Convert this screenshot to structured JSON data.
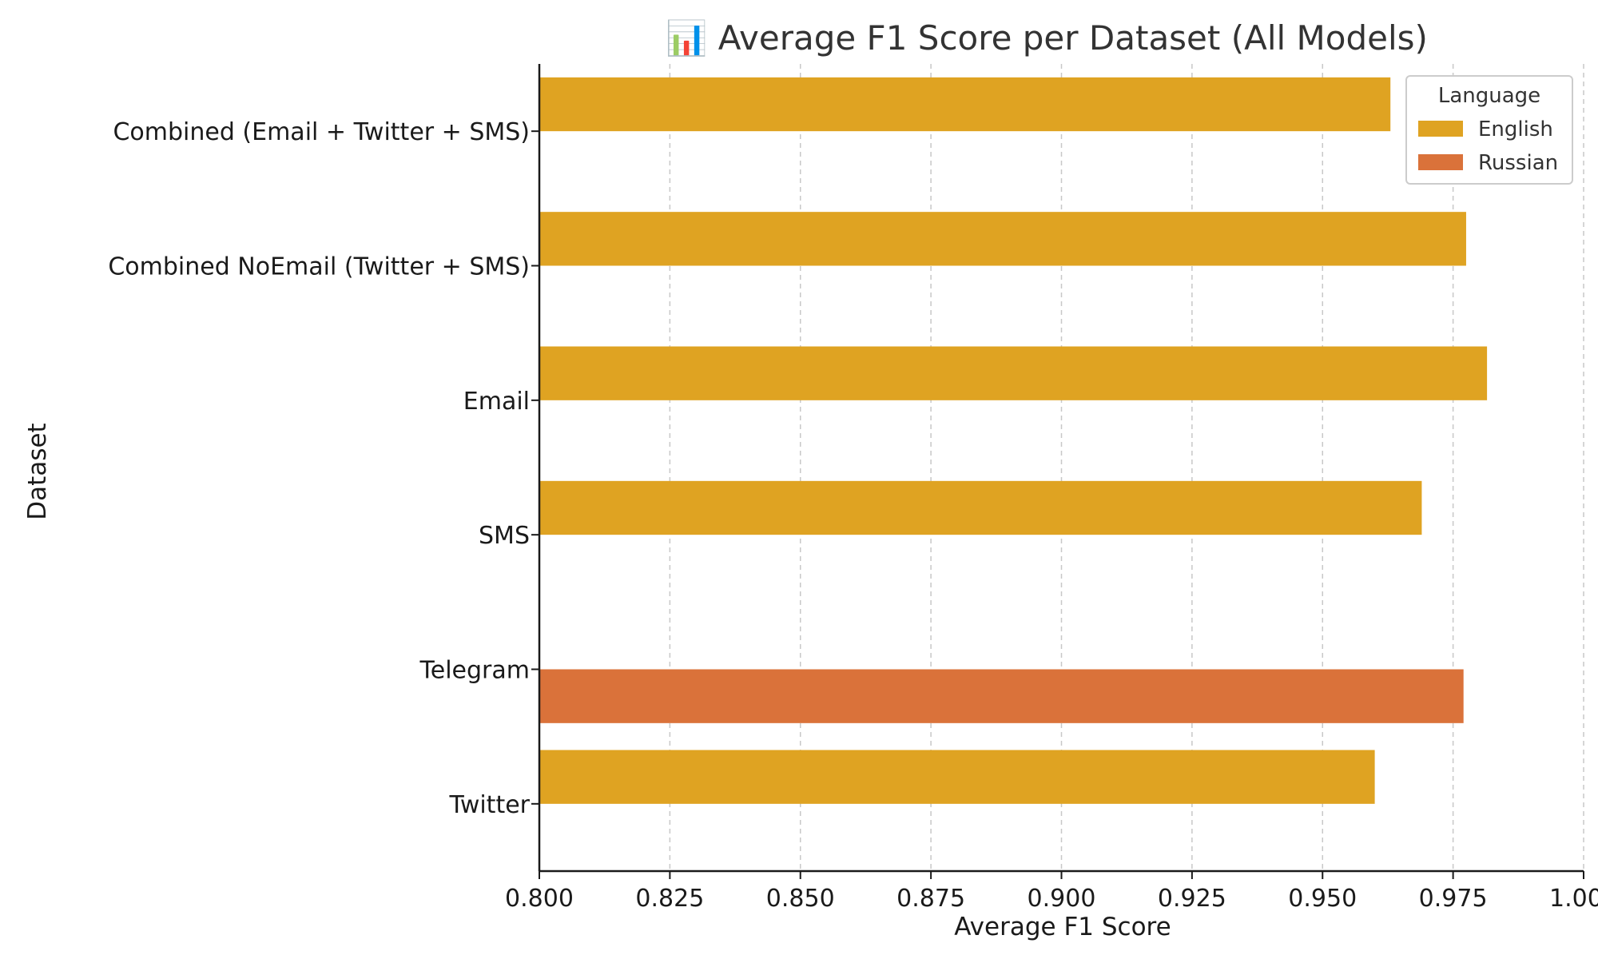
{
  "chart_data": {
    "type": "bar",
    "orientation": "horizontal",
    "title": "📊 Average F1 Score per Dataset (All Models)",
    "xlabel": "Average F1 Score",
    "ylabel": "Dataset",
    "xlim": [
      0.8,
      1.0
    ],
    "xticks": [
      "0.800",
      "0.825",
      "0.850",
      "0.875",
      "0.900",
      "0.925",
      "0.950",
      "0.975",
      "1.000"
    ],
    "grid": "x, dashed",
    "categories": [
      "Combined (Email + Twitter + SMS)",
      "Combined NoEmail (Twitter + SMS)",
      "Email",
      "SMS",
      "Telegram",
      "Twitter"
    ],
    "legend": {
      "title": "Language",
      "placement": "top-right"
    },
    "series": [
      {
        "name": "English",
        "color": "#DFA322",
        "values": [
          0.963,
          0.9775,
          0.9815,
          0.969,
          null,
          0.96
        ]
      },
      {
        "name": "Russian",
        "color": "#DA723A",
        "values": [
          null,
          null,
          null,
          null,
          0.977,
          null
        ]
      }
    ]
  }
}
